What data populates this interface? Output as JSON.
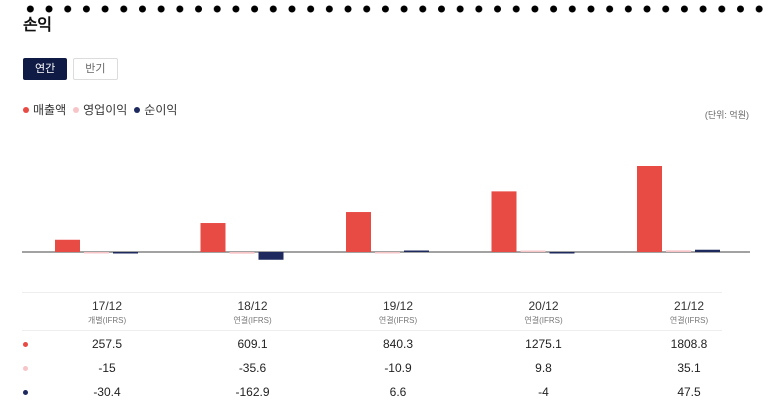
{
  "title": "손익",
  "tabs": [
    {
      "label": "연간",
      "active": true
    },
    {
      "label": "반기",
      "active": false
    }
  ],
  "legend": [
    {
      "label": "매출액",
      "color": "#e84a44"
    },
    {
      "label": "영업이익",
      "color": "#f7c5c8"
    },
    {
      "label": "순이익",
      "color": "#1e2a5e"
    }
  ],
  "unit": "(단위: 억원)",
  "chart_data": {
    "type": "bar",
    "categories": [
      "17/12",
      "18/12",
      "19/12",
      "20/12",
      "21/12"
    ],
    "basis": [
      "개별(IFRS)",
      "연결(IFRS)",
      "연결(IFRS)",
      "연결(IFRS)",
      "연결(IFRS)"
    ],
    "series": [
      {
        "name": "매출액",
        "color": "#e84a44",
        "values": [
          257.5,
          609.1,
          840.3,
          1275.1,
          1808.8
        ]
      },
      {
        "name": "영업이익",
        "color": "#f7c5c8",
        "values": [
          -15,
          -35.6,
          -10.9,
          9.8,
          35.1
        ]
      },
      {
        "name": "순이익",
        "color": "#1e2a5e",
        "values": [
          -30.4,
          -162.9,
          6.6,
          -4,
          47.5
        ]
      }
    ]
  }
}
